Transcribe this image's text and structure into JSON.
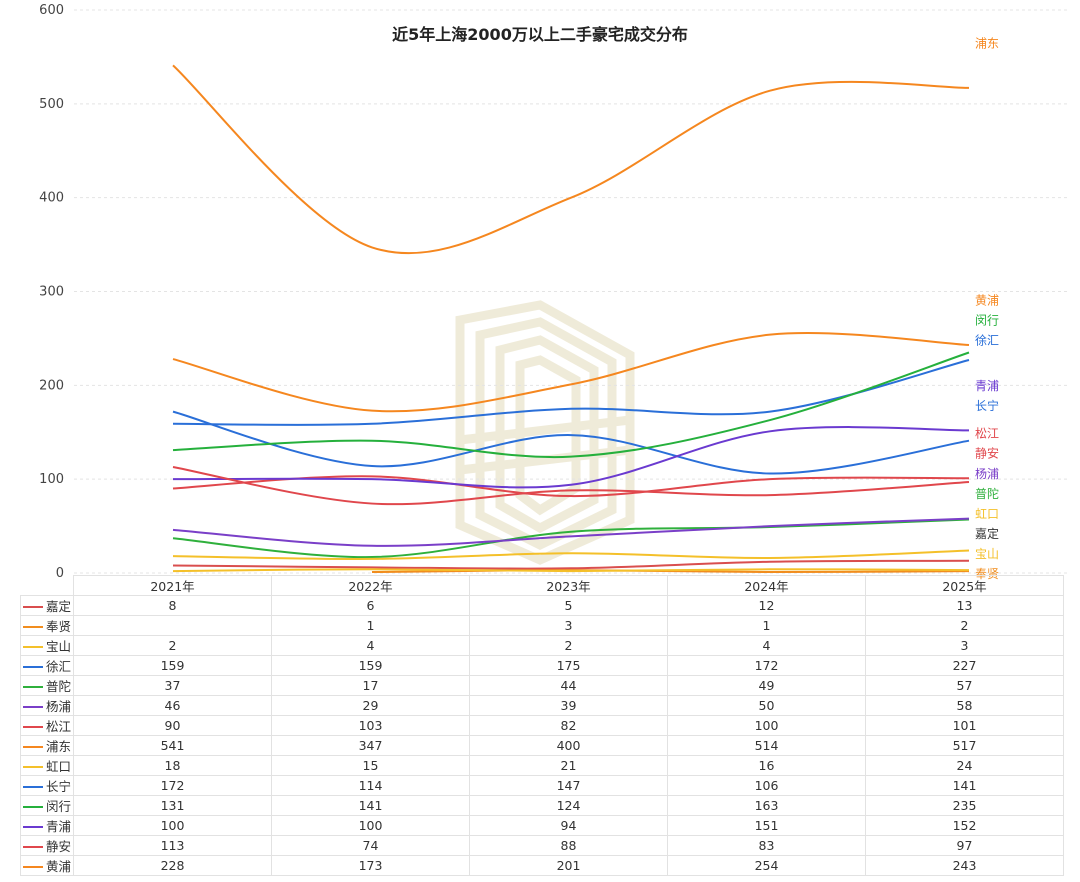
{
  "chart_data": {
    "type": "line",
    "smooth": true,
    "title": "近5年上海2000万以上二手豪宅成交分布",
    "categories": [
      "2021年",
      "2022年",
      "2023年",
      "2024年",
      "2025年"
    ],
    "ylim": [
      0,
      600
    ],
    "yticks": [
      0,
      100,
      200,
      300,
      400,
      500,
      600
    ],
    "grid": true,
    "series": [
      {
        "name": "嘉定",
        "color": "#d94e4e",
        "values": [
          8,
          6,
          5,
          12,
          13
        ]
      },
      {
        "name": "奉贤",
        "color": "#f18d1e",
        "values": [
          null,
          1,
          3,
          1,
          2
        ]
      },
      {
        "name": "宝山",
        "color": "#f4c02a",
        "values": [
          2,
          4,
          2,
          4,
          3
        ]
      },
      {
        "name": "徐汇",
        "color": "#2a6fd8",
        "values": [
          159,
          159,
          175,
          172,
          227
        ]
      },
      {
        "name": "普陀",
        "color": "#2fb03c",
        "values": [
          37,
          17,
          44,
          49,
          57
        ]
      },
      {
        "name": "杨浦",
        "color": "#7a3fc8",
        "values": [
          46,
          29,
          39,
          50,
          58
        ]
      },
      {
        "name": "松江",
        "color": "#e0474c",
        "values": [
          90,
          103,
          82,
          100,
          101
        ]
      },
      {
        "name": "浦东",
        "color": "#f5871f",
        "values": [
          541,
          347,
          400,
          514,
          517
        ]
      },
      {
        "name": "虹口",
        "color": "#f4c02a",
        "values": [
          18,
          15,
          21,
          16,
          24
        ]
      },
      {
        "name": "长宁",
        "color": "#2a6fd8",
        "values": [
          172,
          114,
          147,
          106,
          141
        ]
      },
      {
        "name": "闵行",
        "color": "#25b03c",
        "values": [
          131,
          141,
          124,
          163,
          235
        ]
      },
      {
        "name": "青浦",
        "color": "#6a3ad0",
        "values": [
          100,
          100,
          94,
          151,
          152
        ]
      },
      {
        "name": "静安",
        "color": "#e0474c",
        "values": [
          113,
          74,
          88,
          83,
          97
        ]
      },
      {
        "name": "黄浦",
        "color": "#f5871f",
        "values": [
          228,
          173,
          201,
          254,
          243
        ]
      }
    ],
    "end_labels": [
      {
        "text": "浦东",
        "color": "#f5871f"
      },
      {
        "text": "黄浦",
        "color": "#f5871f"
      },
      {
        "text": "闵行",
        "color": "#25b03c"
      },
      {
        "text": "徐汇",
        "color": "#2a6fd8"
      },
      {
        "text": "青浦",
        "color": "#6a3ad0"
      },
      {
        "text": "长宁",
        "color": "#2a6fd8"
      },
      {
        "text": "松江",
        "color": "#e0474c"
      },
      {
        "text": "静安",
        "color": "#e0474c"
      },
      {
        "text": "杨浦",
        "color": "#7a3fc8"
      },
      {
        "text": "普陀",
        "color": "#2fb03c"
      },
      {
        "text": "虹口",
        "color": "#f4c02a"
      },
      {
        "text": "宝山",
        "color": "#f4c02a"
      },
      {
        "text": "嘉定",
        "color": "#333333"
      },
      {
        "text": "奉贤",
        "color": "#f18d1e"
      }
    ]
  },
  "table": {
    "rows": [
      {
        "label": "嘉定",
        "color": "#d94e4e",
        "cells": [
          "8",
          "6",
          "5",
          "12",
          "13"
        ]
      },
      {
        "label": "奉贤",
        "color": "#f18d1e",
        "cells": [
          "",
          "1",
          "3",
          "1",
          "2"
        ]
      },
      {
        "label": "宝山",
        "color": "#f4c02a",
        "cells": [
          "2",
          "4",
          "2",
          "4",
          "3"
        ]
      },
      {
        "label": "徐汇",
        "color": "#2a6fd8",
        "cells": [
          "159",
          "159",
          "175",
          "172",
          "227"
        ]
      },
      {
        "label": "普陀",
        "color": "#2fb03c",
        "cells": [
          "37",
          "17",
          "44",
          "49",
          "57"
        ]
      },
      {
        "label": "杨浦",
        "color": "#7a3fc8",
        "cells": [
          "46",
          "29",
          "39",
          "50",
          "58"
        ]
      },
      {
        "label": "松江",
        "color": "#e0474c",
        "cells": [
          "90",
          "103",
          "82",
          "100",
          "101"
        ]
      },
      {
        "label": "浦东",
        "color": "#f5871f",
        "cells": [
          "541",
          "347",
          "400",
          "514",
          "517"
        ]
      },
      {
        "label": "虹口",
        "color": "#f4c02a",
        "cells": [
          "18",
          "15",
          "21",
          "16",
          "24"
        ]
      },
      {
        "label": "长宁",
        "color": "#2a6fd8",
        "cells": [
          "172",
          "114",
          "147",
          "106",
          "141"
        ]
      },
      {
        "label": "闵行",
        "color": "#25b03c",
        "cells": [
          "131",
          "141",
          "124",
          "163",
          "235"
        ]
      },
      {
        "label": "青浦",
        "color": "#6a3ad0",
        "cells": [
          "100",
          "100",
          "94",
          "151",
          "152"
        ]
      },
      {
        "label": "静安",
        "color": "#e0474c",
        "cells": [
          "113",
          "74",
          "88",
          "83",
          "97"
        ]
      },
      {
        "label": "黄浦",
        "color": "#f5871f",
        "cells": [
          "228",
          "173",
          "201",
          "254",
          "243"
        ]
      }
    ]
  }
}
